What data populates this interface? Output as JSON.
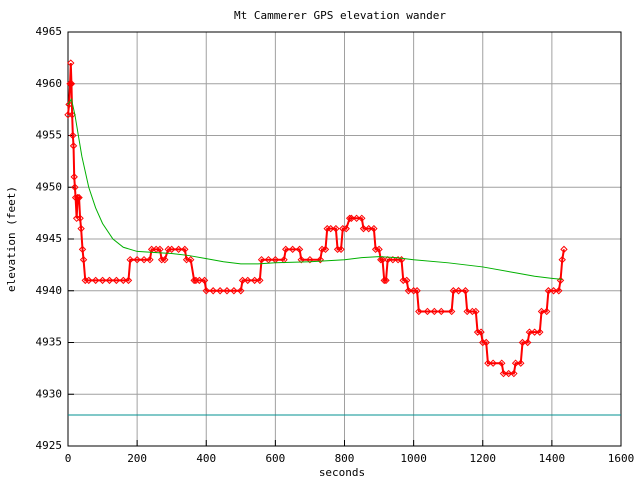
{
  "chart_data": {
    "type": "line",
    "title": "Mt Cammerer GPS elevation wander",
    "x_label": "seconds",
    "y_label": "elevation (feet)",
    "xlim": [
      0,
      1600
    ],
    "xticks": [
      0,
      200,
      400,
      600,
      800,
      1000,
      1200,
      1400,
      1600
    ],
    "ylim": [
      4925,
      4965
    ],
    "yticks": [
      4925,
      4930,
      4935,
      4940,
      4945,
      4950,
      4955,
      4960,
      4965
    ],
    "grid": true,
    "series": [
      {
        "color": "#ff0000",
        "markers": true,
        "x": [
          0,
          3,
          6,
          8,
          10,
          12,
          14,
          16,
          18,
          20,
          22,
          25,
          28,
          32,
          35,
          38,
          42,
          45,
          50,
          60,
          80,
          100,
          120,
          140,
          160,
          175,
          180,
          200,
          220,
          237,
          242,
          255,
          266,
          271,
          280,
          290,
          300,
          320,
          338,
          343,
          355,
          365,
          370,
          380,
          395,
          400,
          420,
          440,
          460,
          480,
          500,
          505,
          520,
          540,
          555,
          560,
          580,
          600,
          625,
          630,
          650,
          670,
          675,
          700,
          730,
          735,
          745,
          750,
          760,
          775,
          780,
          790,
          795,
          805,
          815,
          820,
          835,
          850,
          855,
          870,
          885,
          890,
          900,
          905,
          910,
          915,
          920,
          925,
          940,
          955,
          965,
          970,
          980,
          985,
          1000,
          1010,
          1015,
          1040,
          1060,
          1080,
          1110,
          1115,
          1130,
          1150,
          1155,
          1170,
          1180,
          1185,
          1195,
          1200,
          1210,
          1215,
          1230,
          1255,
          1260,
          1275,
          1290,
          1295,
          1310,
          1315,
          1330,
          1335,
          1350,
          1365,
          1370,
          1385,
          1390,
          1405,
          1420,
          1425,
          1430,
          1435
        ],
        "values": [
          4957,
          4958,
          4960,
          4962,
          4960,
          4957,
          4955,
          4954,
          4951,
          4950,
          4949,
          4947,
          4949,
          4949,
          4947,
          4946,
          4944,
          4943,
          4941,
          4941,
          4941,
          4941,
          4941,
          4941,
          4941,
          4941,
          4943,
          4943,
          4943,
          4943,
          4944,
          4944,
          4944,
          4943,
          4943,
          4944,
          4944,
          4944,
          4944,
          4943,
          4943,
          4941,
          4941,
          4941,
          4941,
          4940,
          4940,
          4940,
          4940,
          4940,
          4940,
          4941,
          4941,
          4941,
          4941,
          4943,
          4943,
          4943,
          4943,
          4944,
          4944,
          4944,
          4943,
          4943,
          4943,
          4944,
          4944,
          4946,
          4946,
          4946,
          4944,
          4944,
          4946,
          4946,
          4947,
          4947,
          4947,
          4947,
          4946,
          4946,
          4946,
          4944,
          4944,
          4943,
          4943,
          4941,
          4941,
          4943,
          4943,
          4943,
          4943,
          4941,
          4941,
          4940,
          4940,
          4940,
          4938,
          4938,
          4938,
          4938,
          4938,
          4940,
          4940,
          4940,
          4938,
          4938,
          4938,
          4936,
          4936,
          4935,
          4935,
          4933,
          4933,
          4933,
          4932,
          4932,
          4932,
          4933,
          4933,
          4935,
          4935,
          4936,
          4936,
          4936,
          4938,
          4938,
          4940,
          4940,
          4940,
          4941,
          4943,
          4944
        ]
      },
      {
        "color": "#00b000",
        "markers": false,
        "x": [
          0,
          10,
          20,
          40,
          60,
          80,
          100,
          130,
          160,
          200,
          250,
          300,
          350,
          400,
          450,
          500,
          550,
          600,
          700,
          800,
          850,
          900,
          950,
          1000,
          1100,
          1200,
          1300,
          1350,
          1400,
          1430
        ],
        "values": [
          4958,
          4958.5,
          4957,
          4953,
          4950,
          4948,
          4946.5,
          4945,
          4944.2,
          4943.8,
          4943.7,
          4943.6,
          4943.4,
          4943.1,
          4942.8,
          4942.6,
          4942.6,
          4942.7,
          4942.8,
          4943,
          4943.2,
          4943.3,
          4943.2,
          4943,
          4942.7,
          4942.3,
          4941.7,
          4941.4,
          4941.2,
          4941.1
        ]
      },
      {
        "color": "#009090",
        "markers": false,
        "x": [
          0,
          1600
        ],
        "values": [
          4928,
          4928
        ]
      }
    ]
  }
}
